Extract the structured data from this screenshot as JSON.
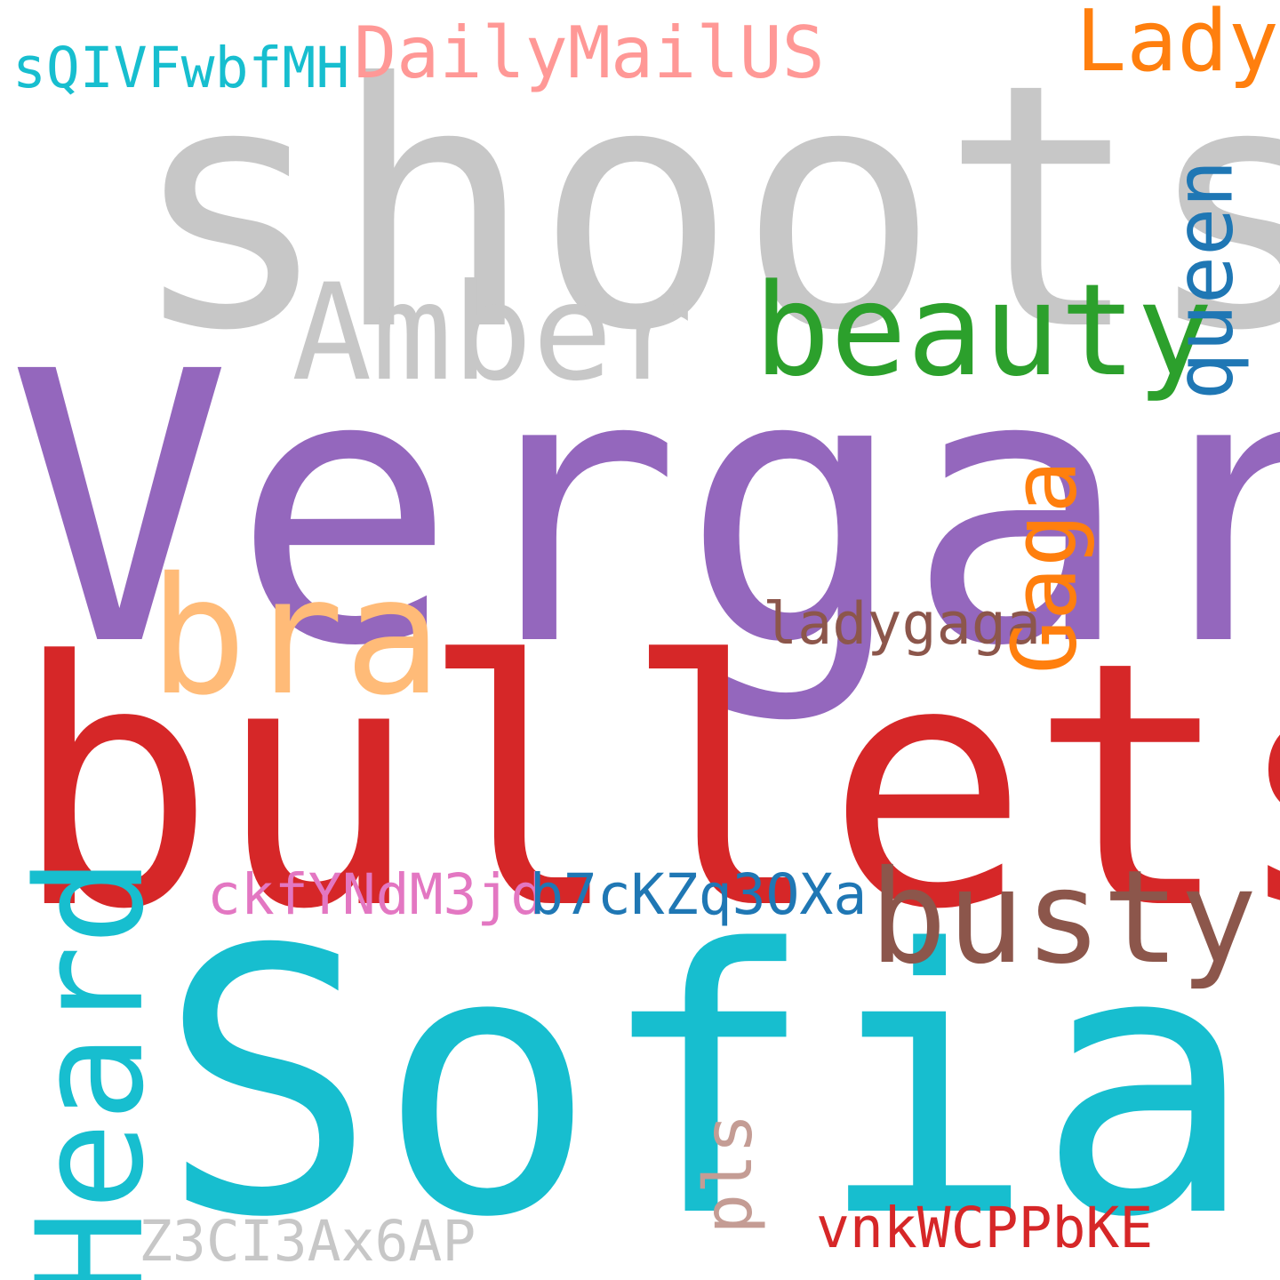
{
  "background": "#ffffff",
  "words": {
    "shoots": {
      "text": "shoots",
      "color": "#c7c7c7"
    },
    "vergara": {
      "text": "Vergara",
      "color": "#9467bd"
    },
    "bullets": {
      "text": "bullets",
      "color": "#d62728"
    },
    "sofia": {
      "text": "Sofia",
      "color": "#17becf"
    },
    "amber": {
      "text": "Amber",
      "color": "#c7c7c7"
    },
    "beauty": {
      "text": "beauty",
      "color": "#2ca02c"
    },
    "queen": {
      "text": "queen",
      "color": "#1f77b4"
    },
    "gaga": {
      "text": "Gaga",
      "color": "#ff7f0e"
    },
    "bra": {
      "text": "bra",
      "color": "#ffbb78"
    },
    "busty": {
      "text": "busty",
      "color": "#8c564b"
    },
    "heard": {
      "text": "Heard",
      "color": "#17becf"
    },
    "lady": {
      "text": "Lady",
      "color": "#ff7f0e"
    },
    "dailymailus": {
      "text": "DailyMailUS",
      "color": "#ff9896"
    },
    "sqivfwbfmh": {
      "text": "sQIVFwbfMH",
      "color": "#17becf"
    },
    "ladygaga": {
      "text": "ladygaga",
      "color": "#8c564b"
    },
    "ckfyndm3jd": {
      "text": "ckfYNdM3jd",
      "color": "#e377c2"
    },
    "b7ckzq3oxa": {
      "text": "b7cKZq3OXa",
      "color": "#1f77b4"
    },
    "pls": {
      "text": "pls",
      "color": "#c49c94"
    },
    "z3ci3ax6ap": {
      "text": "Z3CI3Ax6AP",
      "color": "#c7c7c7"
    },
    "vnkwcppbke": {
      "text": "vnkWCPPbKE",
      "color": "#d62728"
    }
  }
}
